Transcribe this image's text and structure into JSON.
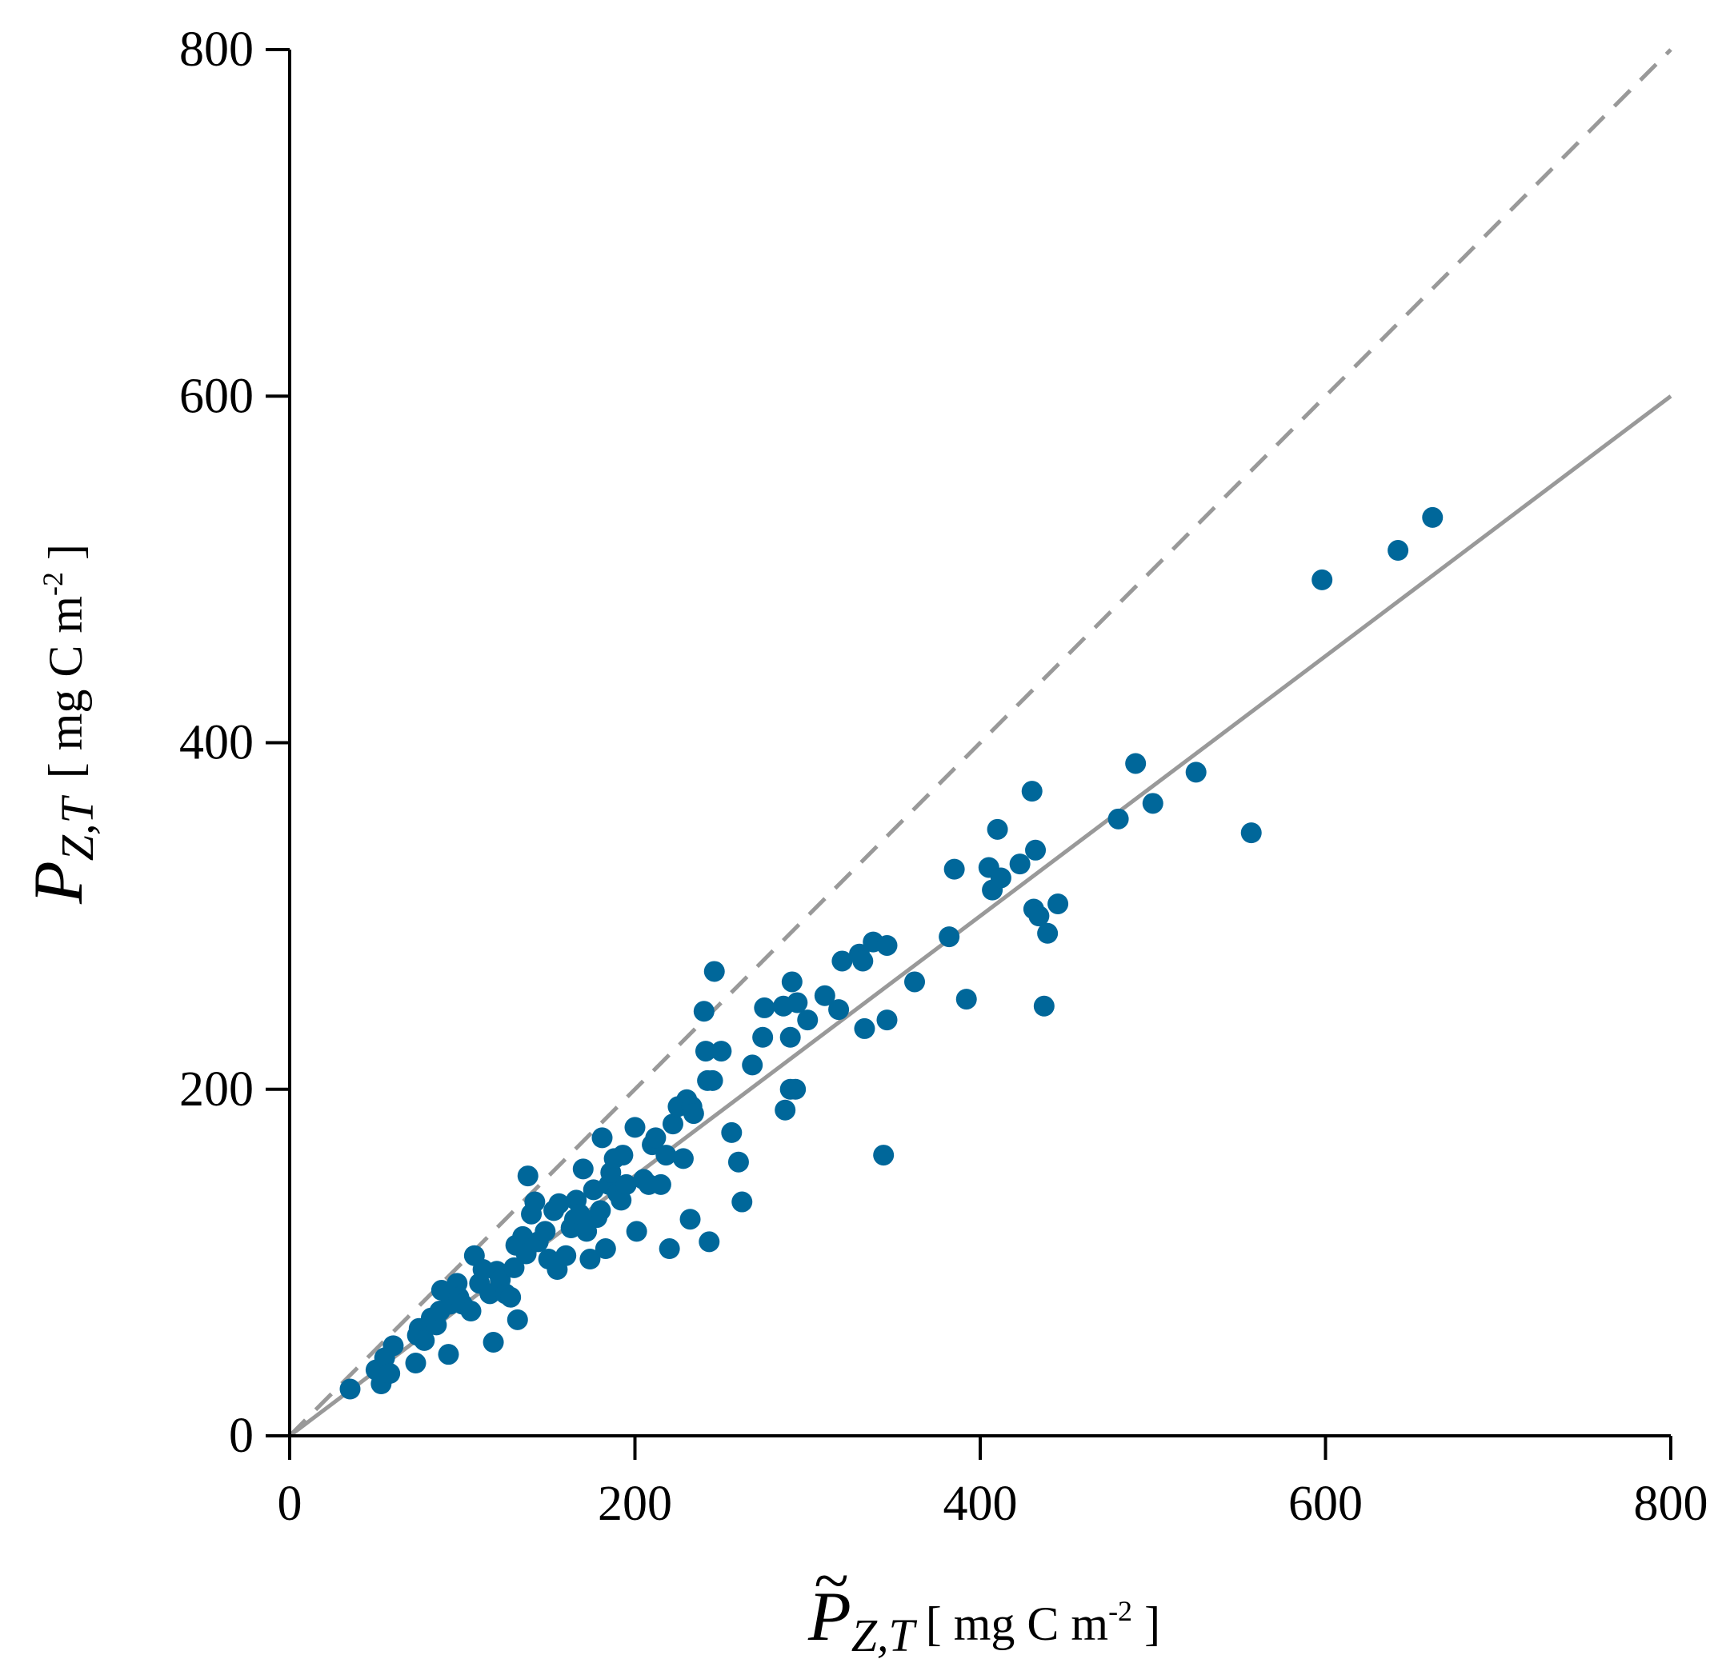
{
  "chart_data": {
    "type": "scatter",
    "title": "",
    "xlabel": {
      "symbol": "P",
      "accent": "~",
      "subscript": "Z,T",
      "units": "[ mg C m",
      "units_sup": "-2",
      "units_close": " ]"
    },
    "ylabel": {
      "symbol": "P",
      "subscript": "Z,T",
      "units": "[ mg C m",
      "units_sup": "-2",
      "units_close": " ]"
    },
    "xlim": [
      0,
      800
    ],
    "ylim": [
      0,
      800
    ],
    "xticks": [
      0,
      200,
      400,
      600,
      800
    ],
    "yticks": [
      0,
      200,
      400,
      600,
      800
    ],
    "xtick_labels": [
      "0",
      "200",
      "400",
      "600",
      "800"
    ],
    "ytick_labels": [
      "0",
      "200",
      "400",
      "600",
      "800"
    ],
    "grid": false,
    "colors": {
      "points": "#00679A",
      "fit_line": "#999999",
      "identity_line": "#999999",
      "axes": "#000000"
    },
    "lines": [
      {
        "name": "identity (1:1)",
        "style": "dashed",
        "x": [
          0,
          800
        ],
        "y": [
          0,
          800
        ]
      },
      {
        "name": "regression fit",
        "style": "solid",
        "x": [
          0,
          800
        ],
        "y": [
          0,
          600
        ]
      }
    ],
    "series": [
      {
        "name": "observations",
        "points": [
          [
            35,
            27
          ],
          [
            50,
            38
          ],
          [
            53,
            30
          ],
          [
            55,
            45
          ],
          [
            58,
            36
          ],
          [
            60,
            52
          ],
          [
            73,
            42
          ],
          [
            74,
            58
          ],
          [
            75,
            62
          ],
          [
            78,
            55
          ],
          [
            82,
            68
          ],
          [
            85,
            64
          ],
          [
            87,
            72
          ],
          [
            88,
            84
          ],
          [
            92,
            47
          ],
          [
            93,
            76
          ],
          [
            97,
            88
          ],
          [
            98,
            80
          ],
          [
            100,
            76
          ],
          [
            105,
            72
          ],
          [
            107,
            104
          ],
          [
            110,
            88
          ],
          [
            112,
            96
          ],
          [
            116,
            82
          ],
          [
            118,
            54
          ],
          [
            120,
            95
          ],
          [
            122,
            90
          ],
          [
            125,
            82
          ],
          [
            128,
            80
          ],
          [
            130,
            97
          ],
          [
            131,
            110
          ],
          [
            132,
            67
          ],
          [
            135,
            115
          ],
          [
            137,
            105
          ],
          [
            138,
            150
          ],
          [
            140,
            128
          ],
          [
            142,
            135
          ],
          [
            144,
            112
          ],
          [
            148,
            118
          ],
          [
            150,
            102
          ],
          [
            153,
            130
          ],
          [
            155,
            96
          ],
          [
            156,
            134
          ],
          [
            160,
            104
          ],
          [
            163,
            120
          ],
          [
            165,
            125
          ],
          [
            166,
            136
          ],
          [
            168,
            128
          ],
          [
            170,
            154
          ],
          [
            172,
            118
          ],
          [
            174,
            102
          ],
          [
            176,
            142
          ],
          [
            178,
            126
          ],
          [
            180,
            130
          ],
          [
            181,
            172
          ],
          [
            183,
            108
          ],
          [
            185,
            145
          ],
          [
            186,
            152
          ],
          [
            188,
            160
          ],
          [
            190,
            140
          ],
          [
            192,
            136
          ],
          [
            193,
            162
          ],
          [
            195,
            145
          ],
          [
            200,
            178
          ],
          [
            201,
            118
          ],
          [
            205,
            148
          ],
          [
            208,
            145
          ],
          [
            210,
            168
          ],
          [
            212,
            172
          ],
          [
            215,
            145
          ],
          [
            218,
            162
          ],
          [
            220,
            108
          ],
          [
            222,
            180
          ],
          [
            225,
            190
          ],
          [
            228,
            160
          ],
          [
            230,
            194
          ],
          [
            232,
            125
          ],
          [
            233,
            190
          ],
          [
            234,
            186
          ],
          [
            240,
            245
          ],
          [
            241,
            222
          ],
          [
            242,
            205
          ],
          [
            243,
            112
          ],
          [
            245,
            205
          ],
          [
            246,
            268
          ],
          [
            250,
            222
          ],
          [
            256,
            175
          ],
          [
            260,
            158
          ],
          [
            262,
            135
          ],
          [
            268,
            214
          ],
          [
            274,
            230
          ],
          [
            275,
            247
          ],
          [
            286,
            248
          ],
          [
            287,
            188
          ],
          [
            290,
            230
          ],
          [
            290,
            200
          ],
          [
            291,
            262
          ],
          [
            293,
            200
          ],
          [
            294,
            250
          ],
          [
            300,
            240
          ],
          [
            310,
            254
          ],
          [
            318,
            246
          ],
          [
            320,
            274
          ],
          [
            330,
            278
          ],
          [
            332,
            274
          ],
          [
            333,
            235
          ],
          [
            338,
            285
          ],
          [
            344,
            162
          ],
          [
            346,
            240
          ],
          [
            346,
            283
          ],
          [
            362,
            262
          ],
          [
            382,
            288
          ],
          [
            385,
            327
          ],
          [
            392,
            252
          ],
          [
            405,
            328
          ],
          [
            407,
            315
          ],
          [
            410,
            350
          ],
          [
            412,
            322
          ],
          [
            423,
            330
          ],
          [
            430,
            372
          ],
          [
            431,
            304
          ],
          [
            432,
            338
          ],
          [
            434,
            300
          ],
          [
            437,
            248
          ],
          [
            439,
            290
          ],
          [
            445,
            307
          ],
          [
            480,
            356
          ],
          [
            490,
            388
          ],
          [
            500,
            365
          ],
          [
            525,
            383
          ],
          [
            557,
            348
          ],
          [
            598,
            494
          ],
          [
            642,
            511
          ],
          [
            662,
            530
          ]
        ]
      }
    ]
  }
}
